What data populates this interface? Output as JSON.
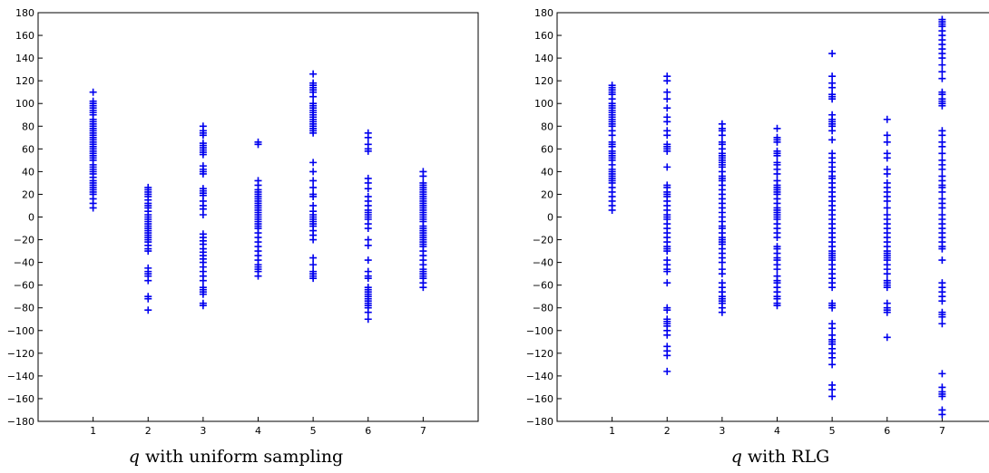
{
  "chart_data": [
    {
      "type": "scatter",
      "marker": "plus",
      "color": "#0000ee",
      "caption_symbol": "q",
      "caption_text": "with uniform sampling",
      "xlabel": "",
      "ylabel": "",
      "xlim": [
        0,
        8
      ],
      "ylim": [
        -180,
        180
      ],
      "grid": false,
      "x_ticks": [
        "1",
        "2",
        "3",
        "4",
        "5",
        "6",
        "7"
      ],
      "y_ticks": [
        "180",
        "160",
        "140",
        "120",
        "100",
        "80",
        "60",
        "40",
        "20",
        "0",
        "-20",
        "-40",
        "-60",
        "-80",
        "-100",
        "-120",
        "-140",
        "-160",
        "-180"
      ],
      "columns": [
        {
          "x": 1,
          "y": [
            110,
            102,
            100,
            98,
            96,
            94,
            92,
            90,
            86,
            84,
            82,
            80,
            78,
            76,
            74,
            72,
            70,
            68,
            66,
            64,
            62,
            60,
            58,
            56,
            54,
            52,
            50,
            46,
            44,
            42,
            40,
            38,
            35,
            32,
            30,
            28,
            26,
            24,
            22,
            20,
            16,
            12,
            8
          ]
        },
        {
          "x": 2,
          "y": [
            26,
            24,
            22,
            20,
            18,
            15,
            12,
            10,
            8,
            5,
            2,
            0,
            -2,
            -4,
            -6,
            -8,
            -10,
            -12,
            -14,
            -16,
            -18,
            -20,
            -22,
            -25,
            -28,
            -30,
            -45,
            -48,
            -50,
            -52,
            -56,
            -70,
            -72,
            -82
          ]
        },
        {
          "x": 3,
          "y": [
            80,
            76,
            74,
            72,
            65,
            63,
            61,
            59,
            57,
            55,
            45,
            42,
            40,
            38,
            25,
            23,
            21,
            19,
            14,
            10,
            7,
            2,
            -15,
            -18,
            -21,
            -24,
            -28,
            -31,
            -34,
            -37,
            -40,
            -44,
            -48,
            -52,
            -56,
            -62,
            -64,
            -66,
            -68,
            -76,
            -78
          ]
        },
        {
          "x": 4,
          "y": [
            66,
            64,
            32,
            28,
            24,
            22,
            20,
            18,
            16,
            14,
            12,
            10,
            8,
            6,
            4,
            2,
            0,
            -2,
            -4,
            -6,
            -8,
            -10,
            -14,
            -18,
            -22,
            -26,
            -30,
            -34,
            -38,
            -42,
            -44,
            -46,
            -48,
            -52
          ]
        },
        {
          "x": 5,
          "y": [
            126,
            118,
            116,
            114,
            112,
            110,
            106,
            100,
            98,
            96,
            94,
            92,
            90,
            88,
            86,
            84,
            82,
            80,
            78,
            76,
            74,
            48,
            40,
            32,
            26,
            20,
            18,
            10,
            5,
            2,
            0,
            -2,
            -4,
            -6,
            -8,
            -12,
            -16,
            -20,
            -36,
            -42,
            -48,
            -50,
            -52,
            -54
          ]
        },
        {
          "x": 6,
          "y": [
            74,
            70,
            64,
            60,
            58,
            34,
            30,
            25,
            18,
            14,
            10,
            6,
            4,
            2,
            0,
            -2,
            -6,
            -10,
            -20,
            -25,
            -38,
            -48,
            -52,
            -54,
            -62,
            -64,
            -66,
            -68,
            -70,
            -72,
            -74,
            -76,
            -78,
            -80,
            -84,
            -90
          ]
        },
        {
          "x": 7,
          "y": [
            40,
            36,
            30,
            28,
            26,
            24,
            22,
            20,
            18,
            16,
            14,
            12,
            10,
            8,
            6,
            4,
            2,
            0,
            -2,
            -4,
            -8,
            -10,
            -12,
            -14,
            -16,
            -18,
            -20,
            -22,
            -24,
            -26,
            -30,
            -34,
            -38,
            -42,
            -46,
            -48,
            -50,
            -52,
            -54,
            -58,
            -62
          ]
        }
      ]
    },
    {
      "type": "scatter",
      "marker": "plus",
      "color": "#0000ee",
      "caption_symbol": "q",
      "caption_text": "with RLG",
      "xlabel": "",
      "ylabel": "",
      "xlim": [
        0,
        8
      ],
      "ylim": [
        -180,
        180
      ],
      "grid": false,
      "x_ticks": [
        "1",
        "2",
        "3",
        "4",
        "5",
        "6",
        "7"
      ],
      "y_ticks": [
        "180",
        "160",
        "140",
        "120",
        "100",
        "80",
        "60",
        "40",
        "20",
        "0",
        "-20",
        "-40",
        "-60",
        "-80",
        "-100",
        "-120",
        "-140",
        "-160",
        "-180"
      ],
      "columns": [
        {
          "x": 1,
          "y": [
            116,
            114,
            112,
            110,
            108,
            104,
            100,
            98,
            96,
            94,
            92,
            90,
            88,
            86,
            84,
            82,
            80,
            76,
            72,
            66,
            64,
            62,
            58,
            56,
            54,
            52,
            50,
            46,
            42,
            40,
            38,
            36,
            34,
            32,
            30,
            26,
            22,
            18,
            14,
            10,
            6
          ]
        },
        {
          "x": 2,
          "y": [
            124,
            120,
            110,
            104,
            96,
            88,
            84,
            76,
            72,
            64,
            62,
            60,
            58,
            44,
            28,
            26,
            22,
            20,
            18,
            14,
            10,
            6,
            2,
            0,
            -2,
            -6,
            -10,
            -14,
            -18,
            -22,
            -26,
            -28,
            -30,
            -38,
            -42,
            -46,
            -48,
            -58,
            -80,
            -82,
            -90,
            -92,
            -94,
            -96,
            -100,
            -104,
            -114,
            -118,
            -122,
            -136
          ]
        },
        {
          "x": 3,
          "y": [
            82,
            78,
            76,
            72,
            66,
            64,
            60,
            56,
            54,
            52,
            50,
            48,
            46,
            44,
            40,
            36,
            34,
            32,
            28,
            24,
            20,
            16,
            12,
            8,
            4,
            0,
            -4,
            -8,
            -10,
            -14,
            -18,
            -20,
            -22,
            -24,
            -28,
            -32,
            -36,
            -40,
            -46,
            -50,
            -58,
            -62,
            -66,
            -70,
            -72,
            -74,
            -76,
            -80,
            -84
          ]
        },
        {
          "x": 4,
          "y": [
            78,
            70,
            68,
            66,
            58,
            56,
            54,
            48,
            46,
            42,
            38,
            32,
            28,
            26,
            24,
            22,
            20,
            16,
            12,
            8,
            6,
            4,
            2,
            0,
            -2,
            -6,
            -10,
            -14,
            -18,
            -26,
            -28,
            -32,
            -36,
            -38,
            -42,
            -46,
            -52,
            -56,
            -58,
            -62,
            -66,
            -70,
            -72,
            -76,
            -78
          ]
        },
        {
          "x": 5,
          "y": [
            144,
            124,
            118,
            114,
            108,
            106,
            104,
            90,
            86,
            84,
            82,
            80,
            76,
            68,
            56,
            52,
            48,
            44,
            40,
            36,
            34,
            30,
            26,
            22,
            18,
            14,
            10,
            6,
            2,
            -2,
            -6,
            -10,
            -14,
            -18,
            -22,
            -26,
            -30,
            -32,
            -34,
            -36,
            -38,
            -42,
            -46,
            -50,
            -54,
            -58,
            -62,
            -76,
            -78,
            -80,
            -94,
            -98,
            -104,
            -108,
            -110,
            -112,
            -116,
            -120,
            -124,
            -130,
            -148,
            -152,
            -158
          ]
        },
        {
          "x": 6,
          "y": [
            86,
            72,
            66,
            56,
            52,
            42,
            38,
            30,
            26,
            22,
            18,
            14,
            8,
            2,
            -2,
            -6,
            -10,
            -14,
            -18,
            -22,
            -26,
            -30,
            -32,
            -34,
            -36,
            -38,
            -42,
            -46,
            -50,
            -56,
            -58,
            -60,
            -62,
            -76,
            -80,
            -82,
            -84,
            -106
          ]
        },
        {
          "x": 7,
          "y": [
            174,
            172,
            170,
            168,
            164,
            160,
            156,
            152,
            148,
            144,
            140,
            134,
            128,
            122,
            110,
            108,
            104,
            102,
            100,
            98,
            76,
            72,
            66,
            62,
            56,
            50,
            46,
            42,
            36,
            32,
            28,
            26,
            22,
            16,
            12,
            8,
            2,
            -2,
            -6,
            -10,
            -14,
            -18,
            -22,
            -26,
            -28,
            -38,
            -58,
            -62,
            -66,
            -70,
            -74,
            -84,
            -86,
            -88,
            -94,
            -138,
            -150,
            -154,
            -156,
            -158,
            -170,
            -174
          ]
        }
      ]
    }
  ]
}
